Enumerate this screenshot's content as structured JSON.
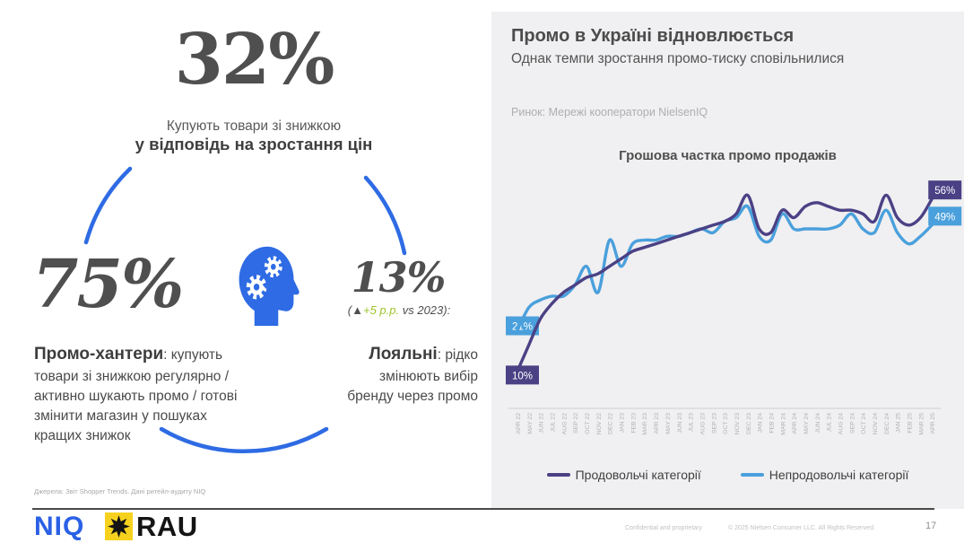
{
  "colors": {
    "accent_blue": "#2e6be4",
    "chart_purple": "#4a4185",
    "chart_blue": "#4aa0dc",
    "delta_green": "#9fc42a",
    "niq_blue": "#2a60e6",
    "rau_yellow": "#f6d21f",
    "panel_bg": "#f0eff1"
  },
  "left": {
    "stat_top": {
      "value": "32%",
      "caption": "Купують товари зі знижкою",
      "caption_bold": "у відповідь на зростання цін"
    },
    "stat_hunters": {
      "value": "75%",
      "label": "Промо-хантери",
      "description": ": купують товари зі знижкою регулярно / активно шукають промо / готові змінити магазин у пошуках кращих знижок"
    },
    "stat_loyal": {
      "value": "13%",
      "delta_prefix": "(▲",
      "delta_value": "+5 p.p.",
      "delta_suffix": " vs 2023):",
      "label": "Лояльні",
      "description": ": рідко змінюють вибір бренду через промо"
    },
    "sources": "Джерела: Звіт Shopper Trends. Дані ритейл-аудиту NIQ"
  },
  "right": {
    "title": "Промо в Україні відновлюється",
    "subtitle": "Однак темпи зростання промо-тиску сповільнилися",
    "market_note": "Ринок: Мережі кооператори NielsenIQ"
  },
  "chart_data": {
    "type": "line",
    "title": "Грошова частка промо продажів",
    "ylabel": "",
    "xlabel": "",
    "ylim": [
      0,
      62
    ],
    "grid": false,
    "legend_position": "bottom",
    "x_labels_rotated_deg": -90,
    "x": [
      "APR 22",
      "MAY 22",
      "JUN 22",
      "JUL 22",
      "AUG 22",
      "SEP 22",
      "OCT 22",
      "NOV 22",
      "DEC 22",
      "JAN 23",
      "FEB 23",
      "MAR 23",
      "APR 23",
      "MAY 23",
      "JUN 23",
      "JUL 23",
      "AUG 23",
      "SEP 23",
      "OCT 23",
      "NOV 23",
      "DEC 23",
      "JAN 24",
      "FEB 24",
      "MAR 24",
      "APR 24",
      "MAY 24",
      "JUN 24",
      "JUL 24",
      "AUG 24",
      "SEP 24",
      "OCT 24",
      "NOV 24",
      "DEC 24",
      "JAN 25",
      "FEB 25",
      "MAR 25",
      "APR 25"
    ],
    "series": [
      {
        "name": "Продовольчі категорії",
        "color": "#4a4185",
        "start_label": "10%",
        "end_label": "56%",
        "values": [
          10,
          17,
          24,
          28,
          31,
          33,
          35,
          36,
          38,
          40,
          42,
          43,
          44,
          45,
          46,
          47,
          48,
          49,
          50,
          52,
          57,
          48,
          47,
          53,
          51,
          54,
          55,
          54,
          53,
          53,
          52,
          50,
          57,
          51,
          49,
          51,
          56
        ]
      },
      {
        "name": "Непродовольчі категорії",
        "color": "#4aa0dc",
        "start_label": "21%",
        "end_label": "49%",
        "values": [
          21,
          27,
          29,
          30,
          30,
          33,
          38,
          31,
          45,
          38,
          44,
          45,
          45,
          46,
          46,
          47,
          48,
          47,
          50,
          51,
          54,
          46,
          45,
          52,
          48,
          48,
          48,
          48,
          49,
          52,
          48,
          47,
          53,
          47,
          44,
          46,
          49
        ]
      }
    ]
  },
  "logos": {
    "niq_text": "NIQ",
    "rau_text": "RAU",
    "rau_icon": "eight-point-star"
  },
  "footer": {
    "confidential": "Confidential and proprietary",
    "copyright": "© 2025 Nielsen Consumer LLC. All Rights Reserved.",
    "page": "17"
  }
}
